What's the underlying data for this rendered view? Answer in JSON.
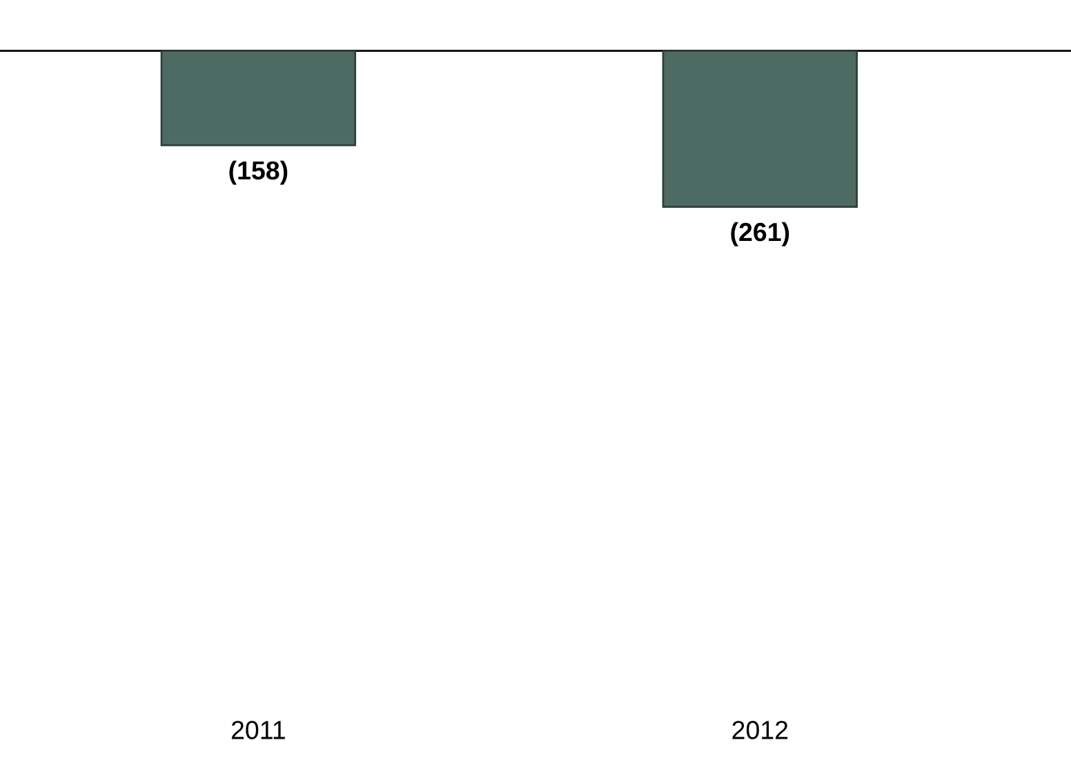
{
  "chart_data": {
    "type": "bar",
    "categories": [
      "2011",
      "2012"
    ],
    "values": [
      -158,
      -261
    ],
    "color": "#4e6b63",
    "value_labels": [
      "(158)",
      "(261)"
    ],
    "grid": false,
    "legend": false
  }
}
